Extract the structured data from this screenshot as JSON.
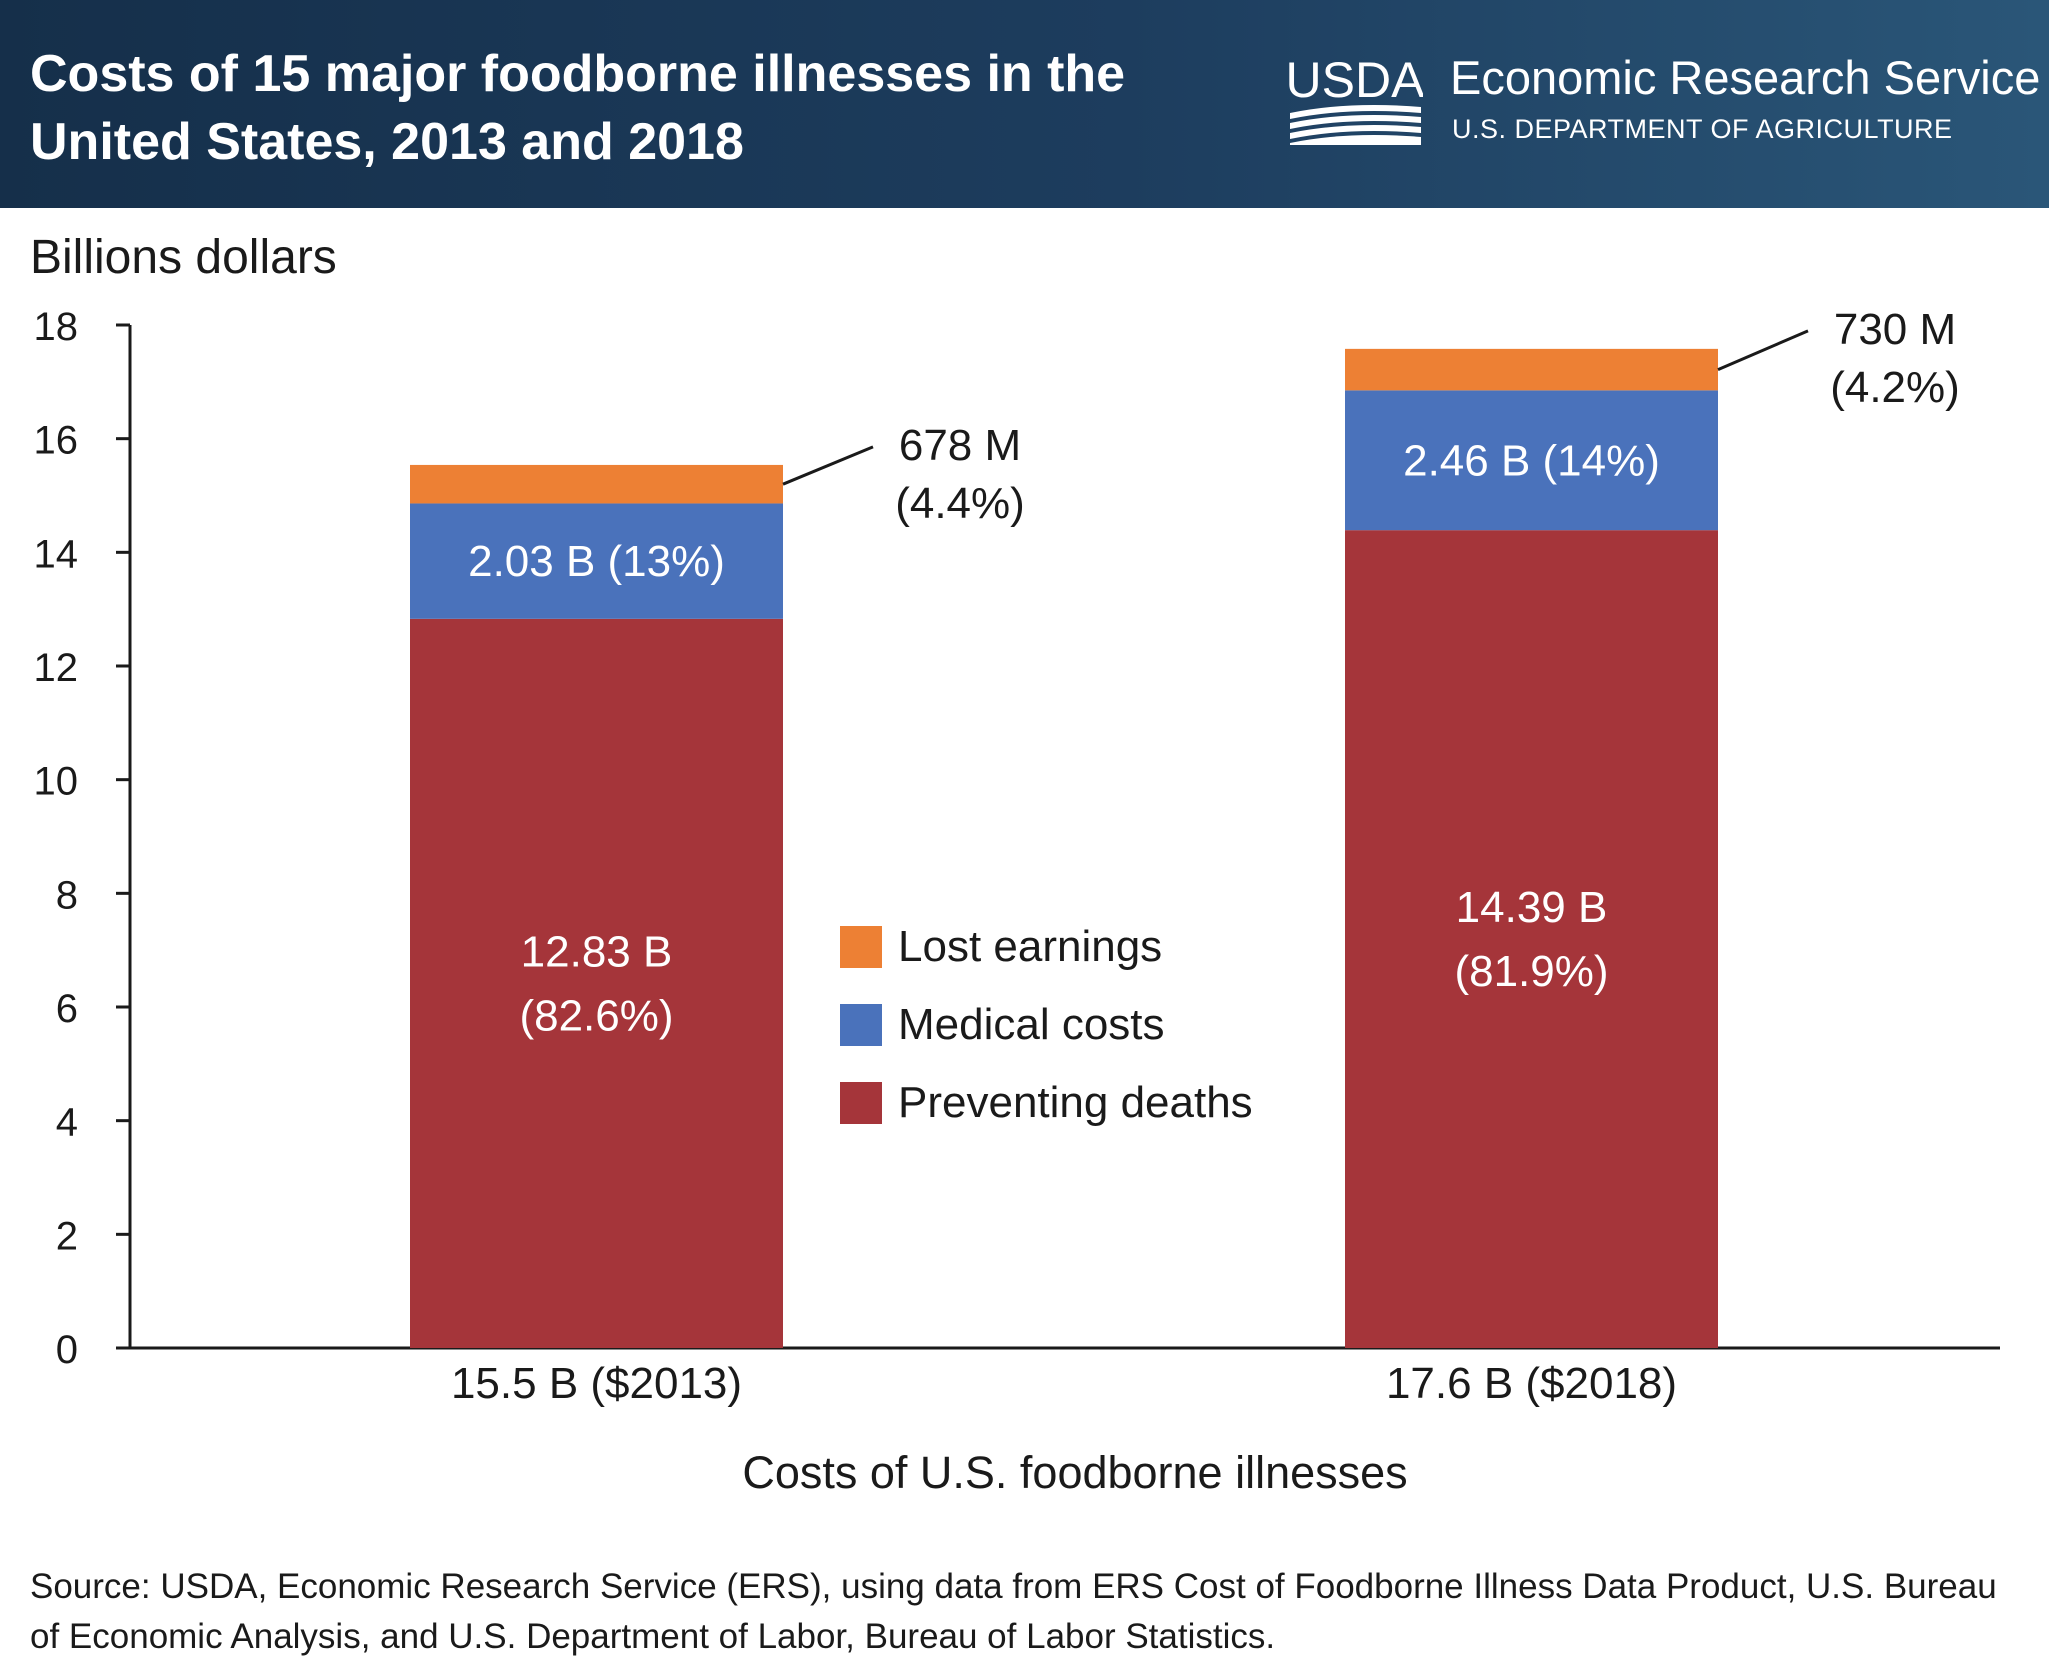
{
  "header": {
    "title_line1": "Costs of 15 major foodborne illnesses in the",
    "title_line2": "United States, 2013 and 2018",
    "logo_text": "USDA",
    "agency": "Economic Research Service",
    "department": "U.S. DEPARTMENT OF AGRICULTURE"
  },
  "colors": {
    "header_bg": "#1d3d5e",
    "preventing_deaths": "#a5353a",
    "medical_costs": "#4a72bb",
    "lost_earnings": "#ed8034"
  },
  "chart_data": {
    "type": "bar",
    "stacked": true,
    "title": "Costs of 15 major foodborne illnesses in the United States, 2013 and 2018",
    "ylabel": "Billions dollars",
    "xlabel": "Costs of U.S. foodborne illnesses",
    "ylim": [
      0,
      18
    ],
    "yticks": [
      0,
      2,
      4,
      6,
      8,
      10,
      12,
      14,
      16,
      18
    ],
    "grid": false,
    "categories": [
      "15.5 B ($2013)",
      "17.6 B ($2018)"
    ],
    "series": [
      {
        "name": "Preventing deaths",
        "color": "#a5353a",
        "values": [
          12.83,
          14.39
        ],
        "labels": [
          [
            "12.83 B",
            "(82.6%)"
          ],
          [
            "14.39 B",
            "(81.9%)"
          ]
        ]
      },
      {
        "name": "Medical costs",
        "color": "#4a72bb",
        "values": [
          2.03,
          2.46
        ],
        "labels": [
          [
            "2.03 B (13%)"
          ],
          [
            "2.46 B (14%)"
          ]
        ]
      },
      {
        "name": "Lost earnings",
        "color": "#ed8034",
        "values": [
          0.678,
          0.73
        ],
        "labels": [
          [
            "678 M",
            "(4.4%)"
          ],
          [
            "730 M",
            "(4.2%)"
          ]
        ]
      }
    ],
    "legend": [
      "Lost earnings",
      "Medical costs",
      "Preventing deaths"
    ],
    "legend_position": "center"
  },
  "source": "Source: USDA, Economic Research Service (ERS), using data from ERS Cost of Foodborne Illness Data Product, U.S. Bureau  of Economic Analysis, and U.S. Department of Labor, Bureau of Labor Statistics."
}
